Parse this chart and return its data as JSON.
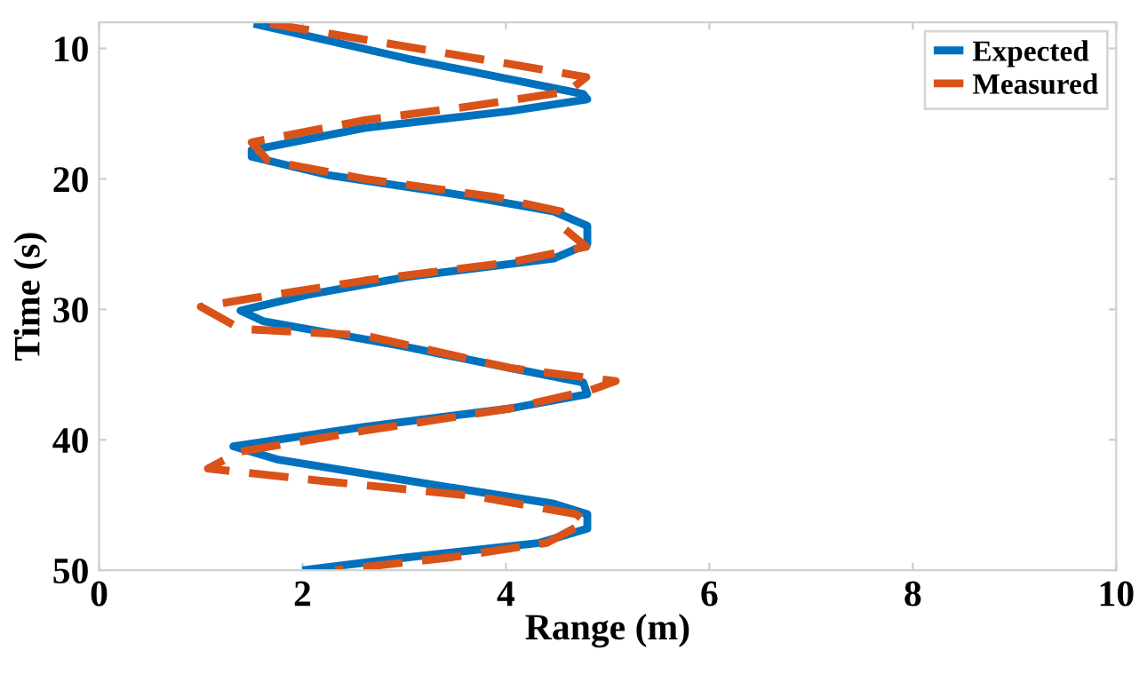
{
  "chart_data": {
    "type": "line",
    "xlabel": "Range (m)",
    "ylabel": "Time (s)",
    "xlim": [
      0,
      10
    ],
    "xticks": [
      0,
      2,
      4,
      6,
      8,
      10
    ],
    "ylim": [
      50,
      8
    ],
    "yticks": [
      10,
      20,
      30,
      40,
      50
    ],
    "grid": false,
    "legend": "top right",
    "series": [
      {
        "name": "Expected",
        "color": "#0072bd",
        "line_style": "solid",
        "x": [
          1.52,
          3.04,
          4.76,
          4.8,
          4.04,
          2.61,
          1.5,
          1.5,
          2.25,
          3.61,
          4.47,
          4.8,
          4.8,
          4.47,
          3.04,
          2.04,
          1.39,
          1.61,
          2.97,
          4.04,
          4.76,
          4.8,
          4.04,
          2.61,
          1.32,
          1.75,
          3.33,
          4.47,
          4.8,
          4.8,
          4.33,
          3.04,
          2.0
        ],
        "values": [
          8.1,
          10.8,
          13.5,
          13.9,
          14.8,
          16.1,
          17.8,
          18.3,
          19.7,
          21.3,
          22.5,
          23.6,
          25.0,
          26.1,
          27.5,
          28.9,
          30.1,
          30.9,
          32.8,
          34.5,
          35.6,
          36.5,
          37.6,
          39.0,
          40.5,
          41.5,
          43.5,
          44.9,
          45.7,
          46.8,
          47.9,
          49.0,
          50.0
        ]
      },
      {
        "name": "Measured",
        "color": "#d95319",
        "line_style": "dashed",
        "x": [
          1.68,
          2.9,
          4.04,
          4.79,
          4.61,
          3.68,
          2.61,
          1.5,
          1.66,
          2.61,
          3.9,
          4.54,
          4.54,
          4.79,
          4.04,
          2.61,
          1.54,
          1.0,
          1.39,
          2.61,
          4.04,
          5.08,
          4.83,
          4.04,
          2.61,
          1.39,
          1.07,
          2.25,
          3.68,
          4.69,
          4.79,
          4.4,
          3.47,
          2.32
        ],
        "values": [
          8.1,
          9.7,
          11.2,
          12.2,
          13.3,
          14.4,
          15.5,
          17.2,
          18.6,
          20.0,
          21.4,
          22.5,
          23.6,
          25.2,
          26.4,
          27.8,
          29.1,
          29.8,
          31.5,
          32.0,
          34.5,
          35.5,
          36.2,
          37.6,
          39.3,
          40.9,
          42.2,
          43.2,
          44.3,
          45.7,
          46.3,
          47.9,
          49.0,
          50.0
        ]
      }
    ]
  }
}
